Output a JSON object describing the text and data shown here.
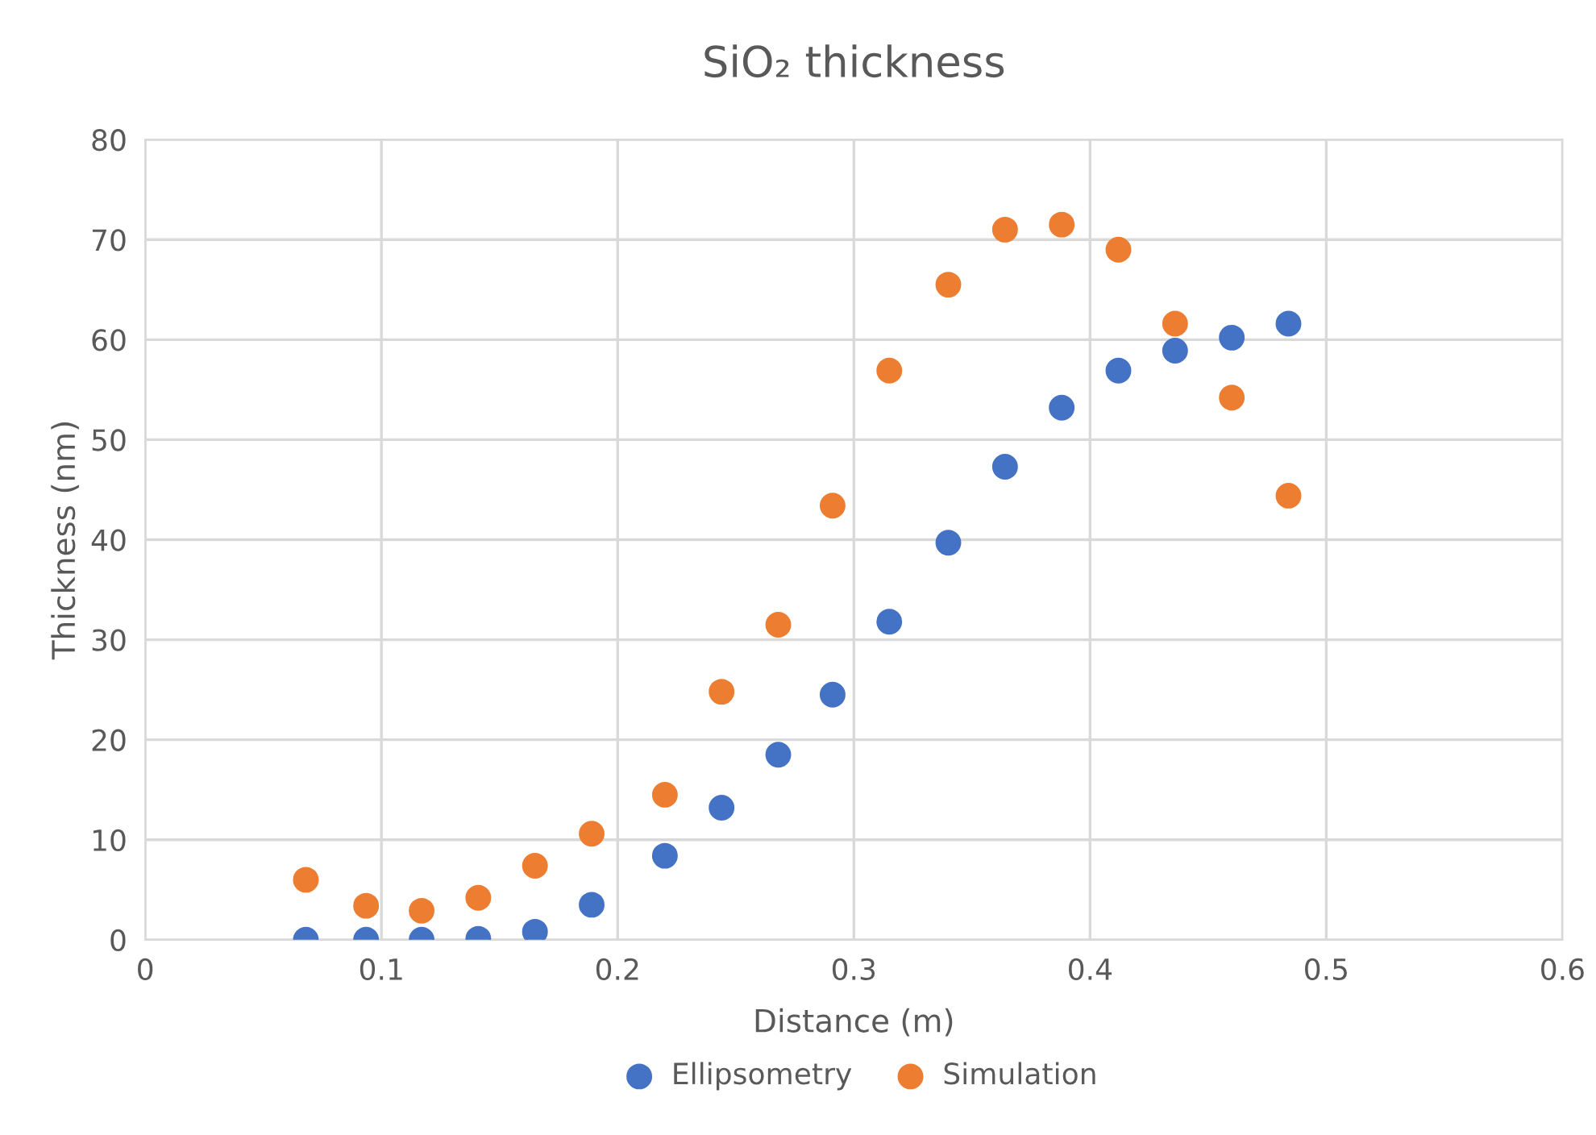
{
  "chart_data": {
    "type": "scatter",
    "title": "SiO₂ thickness",
    "xlabel": "Distance (m)",
    "ylabel": "Thickness (nm)",
    "xlim": [
      0,
      0.6
    ],
    "xticks": [
      0,
      0.1,
      0.2,
      0.3,
      0.4,
      0.5,
      0.6
    ],
    "ylim": [
      0,
      80
    ],
    "yticks": [
      0,
      10,
      20,
      30,
      40,
      50,
      60,
      70,
      80
    ],
    "grid": true,
    "legend": "bottom",
    "marker": "circle",
    "x": [
      0.068,
      0.0935,
      0.117,
      0.141,
      0.165,
      0.189,
      0.22,
      0.244,
      0.268,
      0.291,
      0.315,
      0.34,
      0.364,
      0.388,
      0.412,
      0.436,
      0.46,
      0.484
    ],
    "series": [
      {
        "name": "Ellipsometry",
        "color": "#4472c4",
        "values": [
          0,
          0,
          0,
          0.1,
          0.8,
          3.5,
          8.4,
          13.2,
          18.5,
          24.5,
          31.8,
          39.7,
          47.3,
          53.2,
          56.9,
          58.9,
          60.2,
          61.6
        ]
      },
      {
        "name": "Simulation",
        "color": "#ed7d31",
        "values": [
          6.0,
          3.4,
          2.9,
          4.2,
          7.4,
          10.6,
          14.5,
          24.8,
          31.5,
          43.4,
          56.9,
          65.5,
          71.0,
          71.5,
          69.0,
          61.6,
          54.2,
          44.4
        ]
      }
    ]
  }
}
